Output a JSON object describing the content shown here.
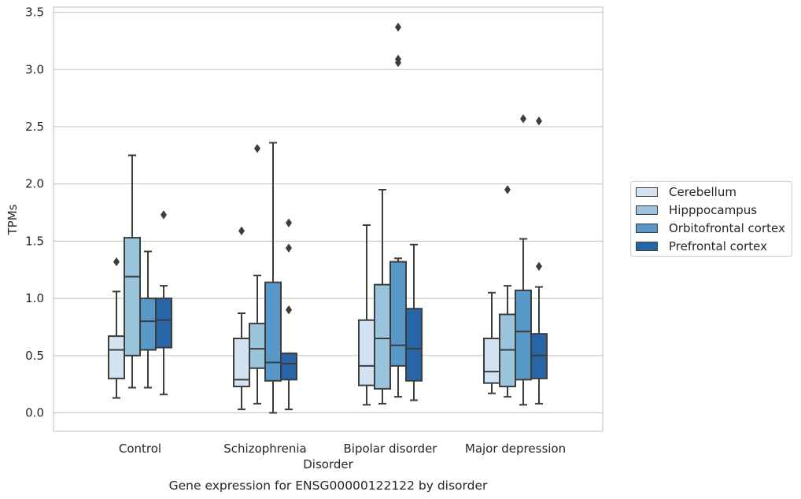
{
  "chart_data": {
    "type": "boxplot",
    "caption": "Gene expression for ENSG00000122122 by disorder",
    "xlabel": "Disorder",
    "ylabel": "TPMs",
    "ylim": [
      -0.16,
      3.56
    ],
    "yticks": [
      "0.0",
      "0.5",
      "1.0",
      "1.5",
      "2.0",
      "2.5",
      "3.0",
      "3.5"
    ],
    "grid": "horizontal",
    "legend_position": "right-outside",
    "categories": [
      "Control",
      "Schizophrenia",
      "Bipolar disorder",
      "Major depression"
    ],
    "series": [
      {
        "name": "Cerebellum",
        "color": "#d3e3f2",
        "boxes": [
          {
            "whislo": 0.13,
            "q1": 0.3,
            "med": 0.55,
            "q3": 0.67,
            "whishi": 1.06,
            "fliers": [
              1.32
            ]
          },
          {
            "whislo": 0.03,
            "q1": 0.23,
            "med": 0.29,
            "q3": 0.65,
            "whishi": 0.87,
            "fliers": [
              1.59
            ]
          },
          {
            "whislo": 0.07,
            "q1": 0.24,
            "med": 0.41,
            "q3": 0.81,
            "whishi": 1.64,
            "fliers": []
          },
          {
            "whislo": 0.17,
            "q1": 0.26,
            "med": 0.36,
            "q3": 0.65,
            "whishi": 1.05,
            "fliers": []
          }
        ]
      },
      {
        "name": "Hipppocampus",
        "color": "#9ac3dc",
        "boxes": [
          {
            "whislo": 0.22,
            "q1": 0.5,
            "med": 1.19,
            "q3": 1.53,
            "whishi": 2.25,
            "fliers": []
          },
          {
            "whislo": 0.08,
            "q1": 0.39,
            "med": 0.56,
            "q3": 0.78,
            "whishi": 1.2,
            "fliers": [
              2.31
            ]
          },
          {
            "whislo": 0.08,
            "q1": 0.21,
            "med": 0.65,
            "q3": 1.12,
            "whishi": 1.95,
            "fliers": []
          },
          {
            "whislo": 0.14,
            "q1": 0.23,
            "med": 0.55,
            "q3": 0.86,
            "whishi": 1.11,
            "fliers": [
              1.95
            ]
          }
        ]
      },
      {
        "name": "Orbitofrontal cortex",
        "color": "#5898c8",
        "boxes": [
          {
            "whislo": 0.22,
            "q1": 0.55,
            "med": 0.8,
            "q3": 1.0,
            "whishi": 1.41,
            "fliers": []
          },
          {
            "whislo": 0.0,
            "q1": 0.28,
            "med": 0.44,
            "q3": 1.14,
            "whishi": 2.36,
            "fliers": []
          },
          {
            "whislo": 0.14,
            "q1": 0.41,
            "med": 0.59,
            "q3": 1.32,
            "whishi": 1.35,
            "fliers": [
              3.06,
              3.09,
              3.37
            ]
          },
          {
            "whislo": 0.07,
            "q1": 0.29,
            "med": 0.71,
            "q3": 1.07,
            "whishi": 1.52,
            "fliers": [
              2.57
            ]
          }
        ]
      },
      {
        "name": "Prefrontal cortex",
        "color": "#2865a6",
        "boxes": [
          {
            "whislo": 0.16,
            "q1": 0.57,
            "med": 0.81,
            "q3": 1.0,
            "whishi": 1.11,
            "fliers": [
              1.73
            ]
          },
          {
            "whislo": 0.03,
            "q1": 0.29,
            "med": 0.43,
            "q3": 0.52,
            "whishi": 0.52,
            "fliers": [
              0.9,
              1.44,
              1.66
            ]
          },
          {
            "whislo": 0.11,
            "q1": 0.28,
            "med": 0.56,
            "q3": 0.91,
            "whishi": 1.47,
            "fliers": []
          },
          {
            "whislo": 0.08,
            "q1": 0.3,
            "med": 0.5,
            "q3": 0.69,
            "whishi": 1.1,
            "fliers": [
              1.28,
              2.55
            ]
          }
        ]
      }
    ]
  }
}
